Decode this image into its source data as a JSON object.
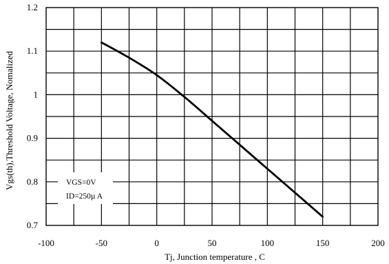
{
  "chart_data": {
    "type": "line",
    "title": "",
    "xlabel": "Tj, Junction temperature , C",
    "ylabel": "Vgs(th),Threshold Voltage, Nomalized",
    "xlim": [
      -100,
      200
    ],
    "ylim": [
      0.7,
      1.2
    ],
    "x_ticks": [
      "-100",
      "-50",
      "0",
      "50",
      "100",
      "150",
      "200"
    ],
    "y_ticks": [
      "0.7",
      "0.8",
      "0.9",
      "1",
      "1.1",
      "1.2"
    ],
    "grid": true,
    "x_minor_divisions": 2,
    "y_minor_divisions": 2,
    "line_color": "#000000",
    "series": [
      {
        "x": [
          -50,
          -25,
          0,
          25,
          50,
          75,
          100,
          125,
          150
        ],
        "y": [
          1.12,
          1.085,
          1.045,
          0.995,
          0.94,
          0.885,
          0.83,
          0.775,
          0.72
        ]
      }
    ],
    "annotations": [
      "VGS=0V",
      "ID=250µ A"
    ]
  }
}
